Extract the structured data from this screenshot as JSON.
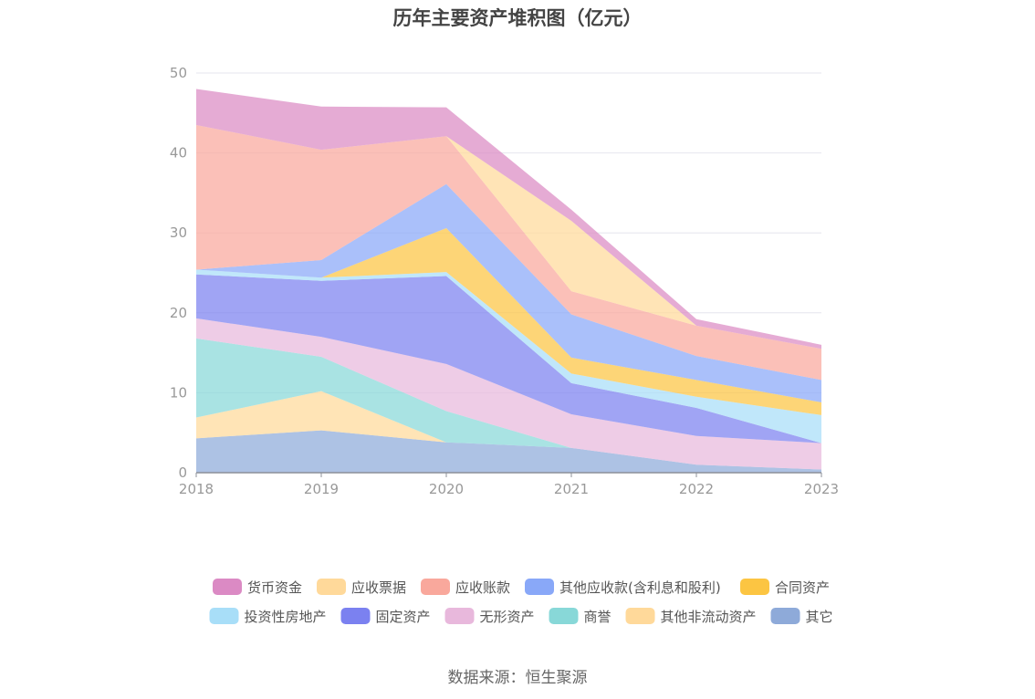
{
  "chart_data": {
    "type": "area",
    "stacked": true,
    "title": "历年主要资产堆积图（亿元）",
    "xlabel": "",
    "ylabel": "",
    "x": [
      "2018",
      "2019",
      "2020",
      "2021",
      "2022",
      "2023"
    ],
    "ylim": [
      0,
      50
    ],
    "yticks": [
      0,
      10,
      20,
      30,
      40,
      50
    ],
    "grid": true,
    "legend_position": "bottom",
    "series": [
      {
        "name": "其它",
        "color": "#8eaad9",
        "values": [
          4.3,
          5.3,
          3.8,
          3.1,
          1.0,
          0.4
        ]
      },
      {
        "name": "其他非流动资产",
        "color": "#ffd99a",
        "values": [
          2.6,
          4.9,
          0.0,
          0.0,
          0.0,
          0.0
        ]
      },
      {
        "name": "商誉",
        "color": "#88d8d8",
        "values": [
          9.9,
          4.3,
          3.9,
          0.0,
          0.0,
          0.0
        ]
      },
      {
        "name": "无形资产",
        "color": "#e8b8dc",
        "values": [
          2.5,
          2.5,
          5.9,
          4.2,
          3.6,
          3.3
        ]
      },
      {
        "name": "固定资产",
        "color": "#7b81f0",
        "values": [
          5.5,
          7.0,
          11.0,
          3.9,
          3.5,
          0.0
        ]
      },
      {
        "name": "投资性房地产",
        "color": "#a8def8",
        "values": [
          0.6,
          0.4,
          0.5,
          1.2,
          1.4,
          3.5
        ]
      },
      {
        "name": "合同资产",
        "color": "#fcc542",
        "values": [
          0.0,
          0.0,
          5.5,
          2.0,
          2.1,
          1.6
        ]
      },
      {
        "name": "其他应收款(含利息和股利)",
        "color": "#89a8f8",
        "values": [
          0.0,
          2.2,
          5.5,
          5.4,
          3.0,
          2.8
        ]
      },
      {
        "name": "应收账款",
        "color": "#f9a89c",
        "values": [
          18.1,
          13.8,
          6.0,
          2.9,
          3.8,
          3.9
        ]
      },
      {
        "name": "应收票据",
        "color": "#ffd99a",
        "values": [
          0.0,
          0.0,
          0.0,
          8.8,
          0.0,
          0.0
        ]
      },
      {
        "name": "货币资金",
        "color": "#db8ac4",
        "values": [
          4.5,
          5.4,
          3.6,
          1.4,
          0.8,
          0.5
        ]
      }
    ],
    "legend_order": [
      "货币资金",
      "应收票据",
      "应收账款",
      "其他应收款(含利息和股利)",
      "合同资产",
      "投资性房地产",
      "固定资产",
      "无形资产",
      "商誉",
      "其他非流动资产",
      "其它"
    ]
  },
  "source": "数据来源：恒生聚源"
}
